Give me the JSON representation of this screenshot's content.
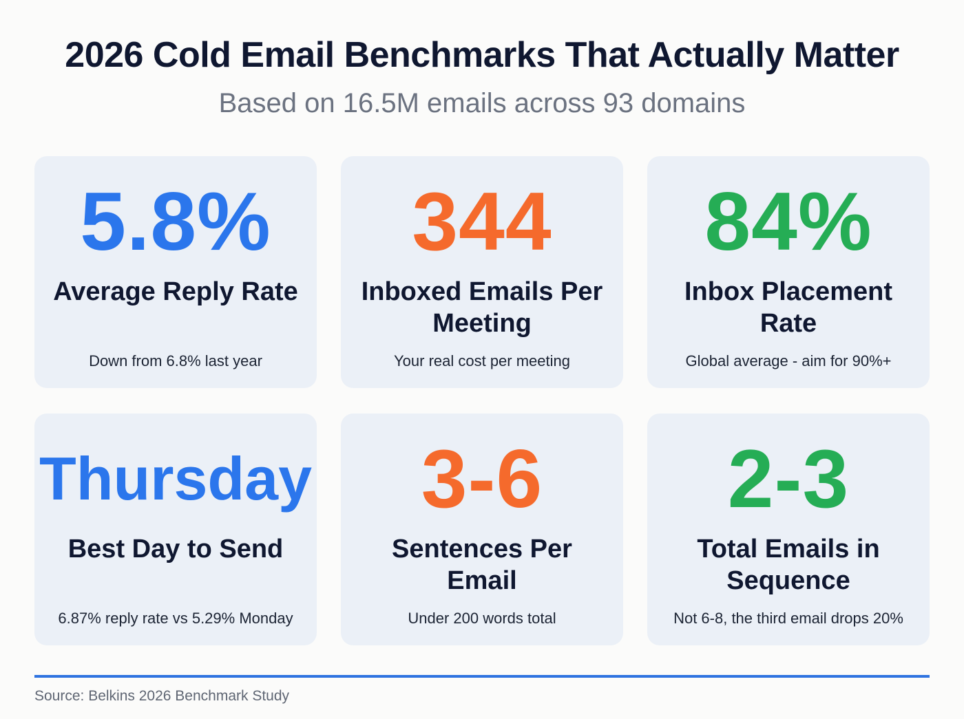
{
  "header": {
    "title": "2026 Cold Email Benchmarks That Actually Matter",
    "subtitle": "Based on 16.5M emails across 93 domains"
  },
  "colors": {
    "blue": "#2b76ec",
    "orange": "#f56a2c",
    "green": "#25ad55"
  },
  "cards": [
    {
      "value": "5.8%",
      "label": "Average Reply Rate",
      "note": "Down from 6.8% last year",
      "color": "blue"
    },
    {
      "value": "344",
      "label": "Inboxed Emails Per Meeting",
      "note": "Your real cost per meeting",
      "color": "orange"
    },
    {
      "value": "84%",
      "label": "Inbox Placement Rate",
      "note": "Global average - aim for 90%+",
      "color": "green"
    },
    {
      "value": "Thursday",
      "label": "Best Day to Send",
      "note": "6.87% reply rate vs 5.29% Monday",
      "color": "blue"
    },
    {
      "value": "3-6",
      "label": "Sentences Per Email",
      "note": "Under 200 words total",
      "color": "orange"
    },
    {
      "value": "2-3",
      "label": "Total Emails in Sequence",
      "note": "Not 6-8, the third email drops 20%",
      "color": "green"
    }
  ],
  "footer": {
    "source": "Source: Belkins 2026 Benchmark Study"
  }
}
